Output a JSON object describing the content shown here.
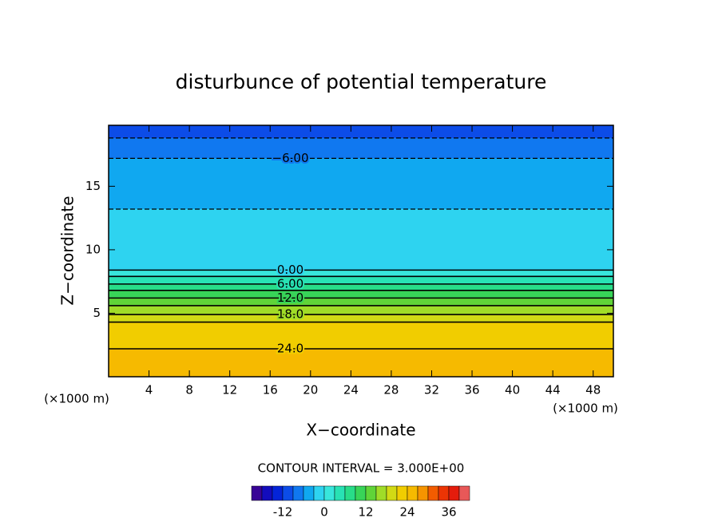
{
  "chart_data": {
    "type": "contour",
    "title": "disturbunce of potential temperature",
    "xlabel": "X−coordinate",
    "ylabel": "Z−coordinate",
    "xunit": "(×1000 m)",
    "yunit": "(×1000 m)",
    "annotation": "CONTOUR INTERVAL = 3.000E+00",
    "xlim": [
      0,
      50
    ],
    "ylim": [
      0,
      19.8
    ],
    "xticks": [
      4,
      8,
      12,
      16,
      20,
      24,
      28,
      32,
      36,
      40,
      44,
      48
    ],
    "yticks": [
      5,
      10,
      15
    ],
    "levels": [
      -9,
      -6,
      -3,
      0,
      3,
      6,
      9,
      12,
      15,
      18,
      21,
      24
    ],
    "level_heights": [
      18.8,
      17.2,
      13.2,
      8.4,
      7.9,
      7.3,
      6.8,
      6.2,
      5.6,
      4.9,
      4.3,
      2.2
    ],
    "contour_labels": [
      {
        "value": -6,
        "label": "−6.00"
      },
      {
        "value": 0,
        "label": "0.00"
      },
      {
        "value": 6,
        "label": "6.00"
      },
      {
        "value": 12,
        "label": "12.0"
      },
      {
        "value": 18,
        "label": "18.0"
      },
      {
        "value": 24,
        "label": "24.0"
      }
    ],
    "colorbar_lim": [
      -21,
      42
    ],
    "colorbar_ticks": [
      -12,
      0,
      12,
      24,
      36
    ]
  }
}
